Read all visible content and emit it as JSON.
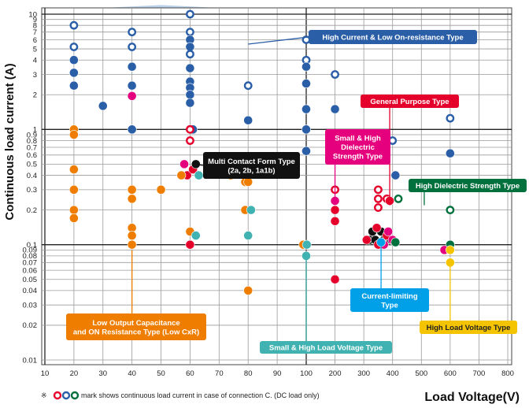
{
  "chart_data": {
    "type": "scatter",
    "xlabel": "Load Voltage(V)",
    "ylabel": "Continuous load current (A)",
    "x_scale": "segmented: 10–100 V wide steps of 10, 100–800 V steps of 100",
    "y_scale": "log",
    "xlim": [
      10,
      800
    ],
    "ylim": [
      0.01,
      10
    ],
    "grid": true,
    "x_ticks": [
      "10",
      "20",
      "30",
      "40",
      "50",
      "60",
      "70",
      "80",
      "90",
      "100",
      "200",
      "300",
      "400",
      "500",
      "600",
      "700",
      "800"
    ],
    "y_ticks": [
      "0.01",
      "0.02",
      "0.03",
      "0.04",
      "0.05",
      "0.06",
      "0.07",
      "0.08",
      "0.09",
      "0.1",
      "0.2",
      "0.3",
      "0.4",
      "0.5",
      "0.6",
      "0.7",
      "0.8",
      "0.9",
      "1",
      "2",
      "3",
      "4",
      "5",
      "6",
      "7",
      "8",
      "9",
      "10"
    ],
    "footnote_prefix": "※",
    "footnote_text": "mark shows continuous load current in case of connection C. (DC load only)",
    "groups": [
      {
        "name": "High Current & Low On-resistance Type",
        "color": "#2a5fa8",
        "fill": "#9ebde0"
      },
      {
        "name": "General Purpose Type",
        "color": "#e4002b",
        "fill": "#f08b96"
      },
      {
        "name": "Small & High Dielectric Strength Type",
        "color": "#e5007e",
        "fill": "#f08b96"
      },
      {
        "name": "Multi Contact Form Type (2a, 2b, 1a1b)",
        "color": "#111111",
        "fill": "#c9c9c9"
      },
      {
        "name": "High Dielectric Strength Type",
        "color": "#00703c",
        "fill": "#8cc4a0"
      },
      {
        "name": "Low Output Capacitance and ON Resistance Type (Low CxR)",
        "color": "#ef7d00",
        "fill": "#f7c48a"
      },
      {
        "name": "Current-limiting Type",
        "color": "#00a0e9",
        "fill": "#9ad4ef"
      },
      {
        "name": "Small & High Load Voltage Type",
        "color": "#3fb2b1",
        "fill": "#9ed6d2"
      },
      {
        "name": "High Load Voltage Type",
        "color": "#f5c400",
        "fill": "#fbe79a"
      }
    ],
    "labels": [
      {
        "text": [
          "High Current & Low On-resistance Type"
        ],
        "group": 0
      },
      {
        "text": [
          "General Purpose Type"
        ],
        "group": 1
      },
      {
        "text": [
          "Small & High",
          "Dielectric",
          "Strength Type"
        ],
        "group": 2
      },
      {
        "text": [
          "Multi Contact Form Type",
          "(2a, 2b, 1a1b)"
        ],
        "group": 3
      },
      {
        "text": [
          "High Dielectric Strength Type"
        ],
        "group": 4
      },
      {
        "text": [
          "Low Output Capacitance",
          "and ON Resistance Type (Low CxR)"
        ],
        "group": 5
      },
      {
        "text": [
          "Current-limiting",
          "Type"
        ],
        "group": 6
      },
      {
        "text": [
          "Small & High Load Voltage Type"
        ],
        "group": 7
      },
      {
        "text": [
          "High Load Voltage Type"
        ],
        "group": 8
      }
    ],
    "points": [
      {
        "x": 20,
        "y": 8,
        "g": 0,
        "open": true
      },
      {
        "x": 20,
        "y": 5.2,
        "g": 0,
        "open": true
      },
      {
        "x": 20,
        "y": 4,
        "g": 0
      },
      {
        "x": 20,
        "y": 3.1,
        "g": 0
      },
      {
        "x": 20,
        "y": 2.4,
        "g": 0
      },
      {
        "x": 30,
        "y": 1.6,
        "g": 0
      },
      {
        "x": 40,
        "y": 7,
        "g": 0,
        "open": true
      },
      {
        "x": 40,
        "y": 5.2,
        "g": 0,
        "open": true
      },
      {
        "x": 40,
        "y": 3.5,
        "g": 0
      },
      {
        "x": 40,
        "y": 2.4,
        "g": 0
      },
      {
        "x": 40,
        "y": 1,
        "g": 0
      },
      {
        "x": 60,
        "y": 10,
        "g": 0,
        "open": true
      },
      {
        "x": 60,
        "y": 7,
        "g": 0,
        "open": true
      },
      {
        "x": 60,
        "y": 6,
        "g": 0
      },
      {
        "x": 60,
        "y": 5.2,
        "g": 0
      },
      {
        "x": 60,
        "y": 4.5,
        "g": 0,
        "open": true
      },
      {
        "x": 60,
        "y": 3.4,
        "g": 0
      },
      {
        "x": 60,
        "y": 2.6,
        "g": 0
      },
      {
        "x": 60,
        "y": 2.3,
        "g": 0
      },
      {
        "x": 60,
        "y": 2,
        "g": 0
      },
      {
        "x": 60,
        "y": 1.7,
        "g": 0
      },
      {
        "x": 61,
        "y": 1,
        "g": 0
      },
      {
        "x": 80,
        "y": 2.4,
        "g": 0,
        "open": true
      },
      {
        "x": 80,
        "y": 1.2,
        "g": 0
      },
      {
        "x": 100,
        "y": 6,
        "g": 0,
        "open": true
      },
      {
        "x": 100,
        "y": 4,
        "g": 0,
        "open": true
      },
      {
        "x": 100,
        "y": 3.5,
        "g": 0
      },
      {
        "x": 100,
        "y": 2.5,
        "g": 0
      },
      {
        "x": 100,
        "y": 1.5,
        "g": 0
      },
      {
        "x": 100,
        "y": 1,
        "g": 0
      },
      {
        "x": 100,
        "y": 0.65,
        "g": 0
      },
      {
        "x": 200,
        "y": 3,
        "g": 0,
        "open": true
      },
      {
        "x": 200,
        "y": 1.5,
        "g": 0
      },
      {
        "x": 400,
        "y": 0.8,
        "g": 0,
        "open": true
      },
      {
        "x": 410,
        "y": 0.4,
        "g": 0
      },
      {
        "x": 600,
        "y": 1.25,
        "g": 0,
        "open": true
      },
      {
        "x": 600,
        "y": 0.62,
        "g": 0
      },
      {
        "x": 40,
        "y": 1.95,
        "g": 2
      },
      {
        "x": 60,
        "y": 1,
        "g": 1,
        "open": true
      },
      {
        "x": 60,
        "y": 0.8,
        "g": 1,
        "open": true
      },
      {
        "x": 59,
        "y": 0.4,
        "g": 1
      },
      {
        "x": 61,
        "y": 0.45,
        "g": 1
      },
      {
        "x": 60,
        "y": 0.1,
        "g": 1
      },
      {
        "x": 58,
        "y": 0.5,
        "g": 2
      },
      {
        "x": 62,
        "y": 0.5,
        "g": 3
      },
      {
        "x": 200,
        "y": 0.3,
        "g": 1,
        "open": true
      },
      {
        "x": 200,
        "y": 0.2,
        "g": 1
      },
      {
        "x": 200,
        "y": 0.16,
        "g": 1
      },
      {
        "x": 200,
        "y": 0.05,
        "g": 1
      },
      {
        "x": 200,
        "y": 0.24,
        "g": 2
      },
      {
        "x": 350,
        "y": 0.3,
        "g": 1,
        "open": true
      },
      {
        "x": 350,
        "y": 0.25,
        "g": 1,
        "open": true
      },
      {
        "x": 350,
        "y": 0.21,
        "g": 1,
        "open": true
      },
      {
        "x": 380,
        "y": 0.25,
        "g": 1,
        "open": true
      },
      {
        "x": 390,
        "y": 0.24,
        "g": 1
      },
      {
        "x": 330,
        "y": 0.13,
        "g": 3
      },
      {
        "x": 360,
        "y": 0.13,
        "g": 3
      },
      {
        "x": 320,
        "y": 0.11,
        "g": 3
      },
      {
        "x": 340,
        "y": 0.11,
        "g": 3
      },
      {
        "x": 370,
        "y": 0.11,
        "g": 3
      },
      {
        "x": 395,
        "y": 0.11,
        "g": 3
      },
      {
        "x": 345,
        "y": 0.14,
        "g": 1
      },
      {
        "x": 310,
        "y": 0.11,
        "g": 1
      },
      {
        "x": 380,
        "y": 0.12,
        "g": 1
      },
      {
        "x": 350,
        "y": 0.1,
        "g": 1
      },
      {
        "x": 385,
        "y": 0.13,
        "g": 2
      },
      {
        "x": 370,
        "y": 0.1,
        "g": 2
      },
      {
        "x": 400,
        "y": 0.11,
        "g": 2
      },
      {
        "x": 360,
        "y": 0.105,
        "g": 6
      },
      {
        "x": 420,
        "y": 0.25,
        "g": 4,
        "open": true
      },
      {
        "x": 600,
        "y": 0.2,
        "g": 4,
        "open": true
      },
      {
        "x": 410,
        "y": 0.105,
        "g": 4
      },
      {
        "x": 600,
        "y": 0.1,
        "g": 4
      },
      {
        "x": 20,
        "y": 1,
        "g": 5
      },
      {
        "x": 20,
        "y": 0.9,
        "g": 5
      },
      {
        "x": 20,
        "y": 0.45,
        "g": 5
      },
      {
        "x": 20,
        "y": 0.3,
        "g": 5
      },
      {
        "x": 20,
        "y": 0.2,
        "g": 5
      },
      {
        "x": 20,
        "y": 0.17,
        "g": 5
      },
      {
        "x": 40,
        "y": 0.3,
        "g": 5
      },
      {
        "x": 40,
        "y": 0.25,
        "g": 5
      },
      {
        "x": 40,
        "y": 0.14,
        "g": 5
      },
      {
        "x": 40,
        "y": 0.12,
        "g": 5
      },
      {
        "x": 40,
        "y": 0.1,
        "g": 5
      },
      {
        "x": 50,
        "y": 0.3,
        "g": 5
      },
      {
        "x": 57,
        "y": 0.4,
        "g": 5
      },
      {
        "x": 60,
        "y": 0.13,
        "g": 5
      },
      {
        "x": 74,
        "y": 0.4,
        "g": 5
      },
      {
        "x": 79,
        "y": 0.35,
        "g": 5
      },
      {
        "x": 80,
        "y": 0.35,
        "g": 5
      },
      {
        "x": 79,
        "y": 0.2,
        "g": 5
      },
      {
        "x": 80,
        "y": 0.04,
        "g": 5
      },
      {
        "x": 99,
        "y": 0.1,
        "g": 5
      },
      {
        "x": 63,
        "y": 0.4,
        "g": 7
      },
      {
        "x": 62,
        "y": 0.12,
        "g": 7
      },
      {
        "x": 81,
        "y": 0.2,
        "g": 7
      },
      {
        "x": 80,
        "y": 0.12,
        "g": 7
      },
      {
        "x": 102,
        "y": 0.1,
        "g": 7
      },
      {
        "x": 100,
        "y": 0.08,
        "g": 7
      },
      {
        "x": 580,
        "y": 0.09,
        "g": 2
      },
      {
        "x": 600,
        "y": 0.09,
        "g": 8
      },
      {
        "x": 600,
        "y": 0.07,
        "g": 8
      }
    ]
  }
}
